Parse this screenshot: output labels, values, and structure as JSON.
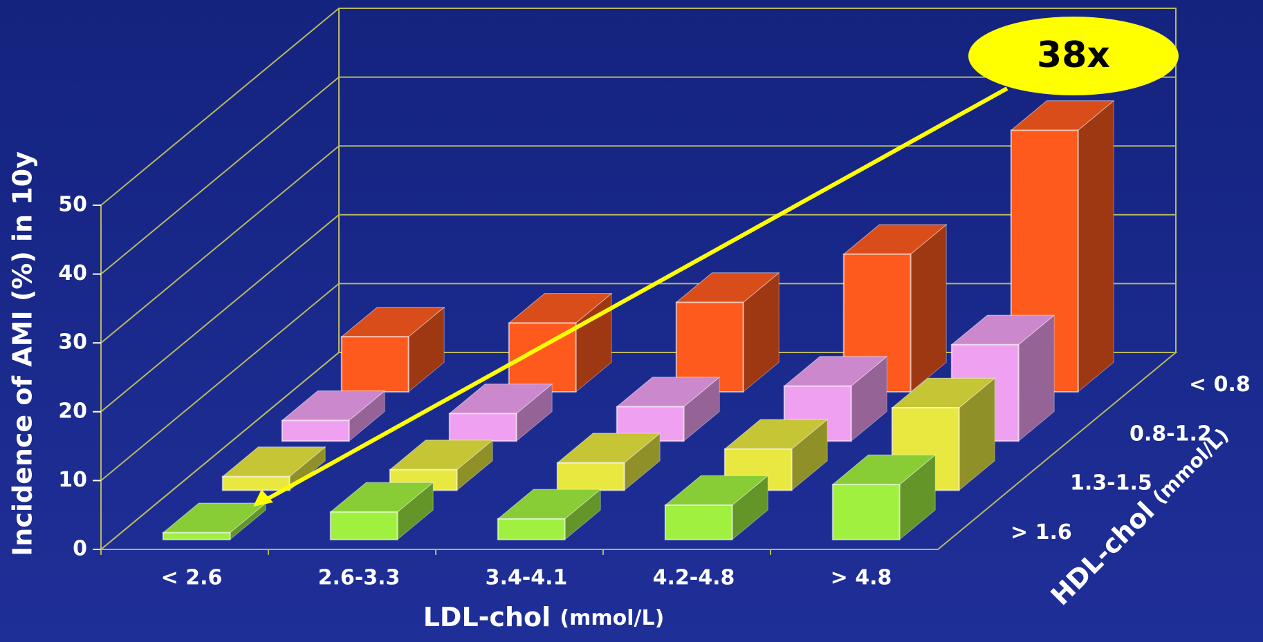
{
  "chart_data": {
    "type": "bar3d",
    "y_label": "Incidence of AMI (%) in 10y",
    "x_label": "LDL-chol",
    "x_label_unit": "(mmol/L)",
    "depth_label": "HDL-chol",
    "depth_label_unit": "(mmol/L)",
    "categories": [
      "< 2.6",
      "2.6-3.3",
      "3.4-4.1",
      "4.2-4.8",
      "> 4.8"
    ],
    "series": [
      {
        "name": "< 0.8",
        "color": "#ff5a1e",
        "values": [
          8,
          10,
          13,
          20,
          38
        ]
      },
      {
        "name": "0.8-1.2",
        "color": "#f0a0f0",
        "values": [
          3,
          4,
          5,
          8,
          14
        ]
      },
      {
        "name": "1.3-1.5",
        "color": "#e8e840",
        "values": [
          2,
          3,
          4,
          6,
          12
        ]
      },
      {
        "name": "> 1.6",
        "color": "#a0f040",
        "values": [
          1,
          4,
          3,
          5,
          8
        ]
      }
    ],
    "ylim": [
      0,
      50
    ],
    "yticks": [
      0,
      10,
      20,
      30,
      40,
      50
    ],
    "grid": true,
    "annotation": {
      "text": "38x",
      "color": "#ffff00"
    }
  }
}
